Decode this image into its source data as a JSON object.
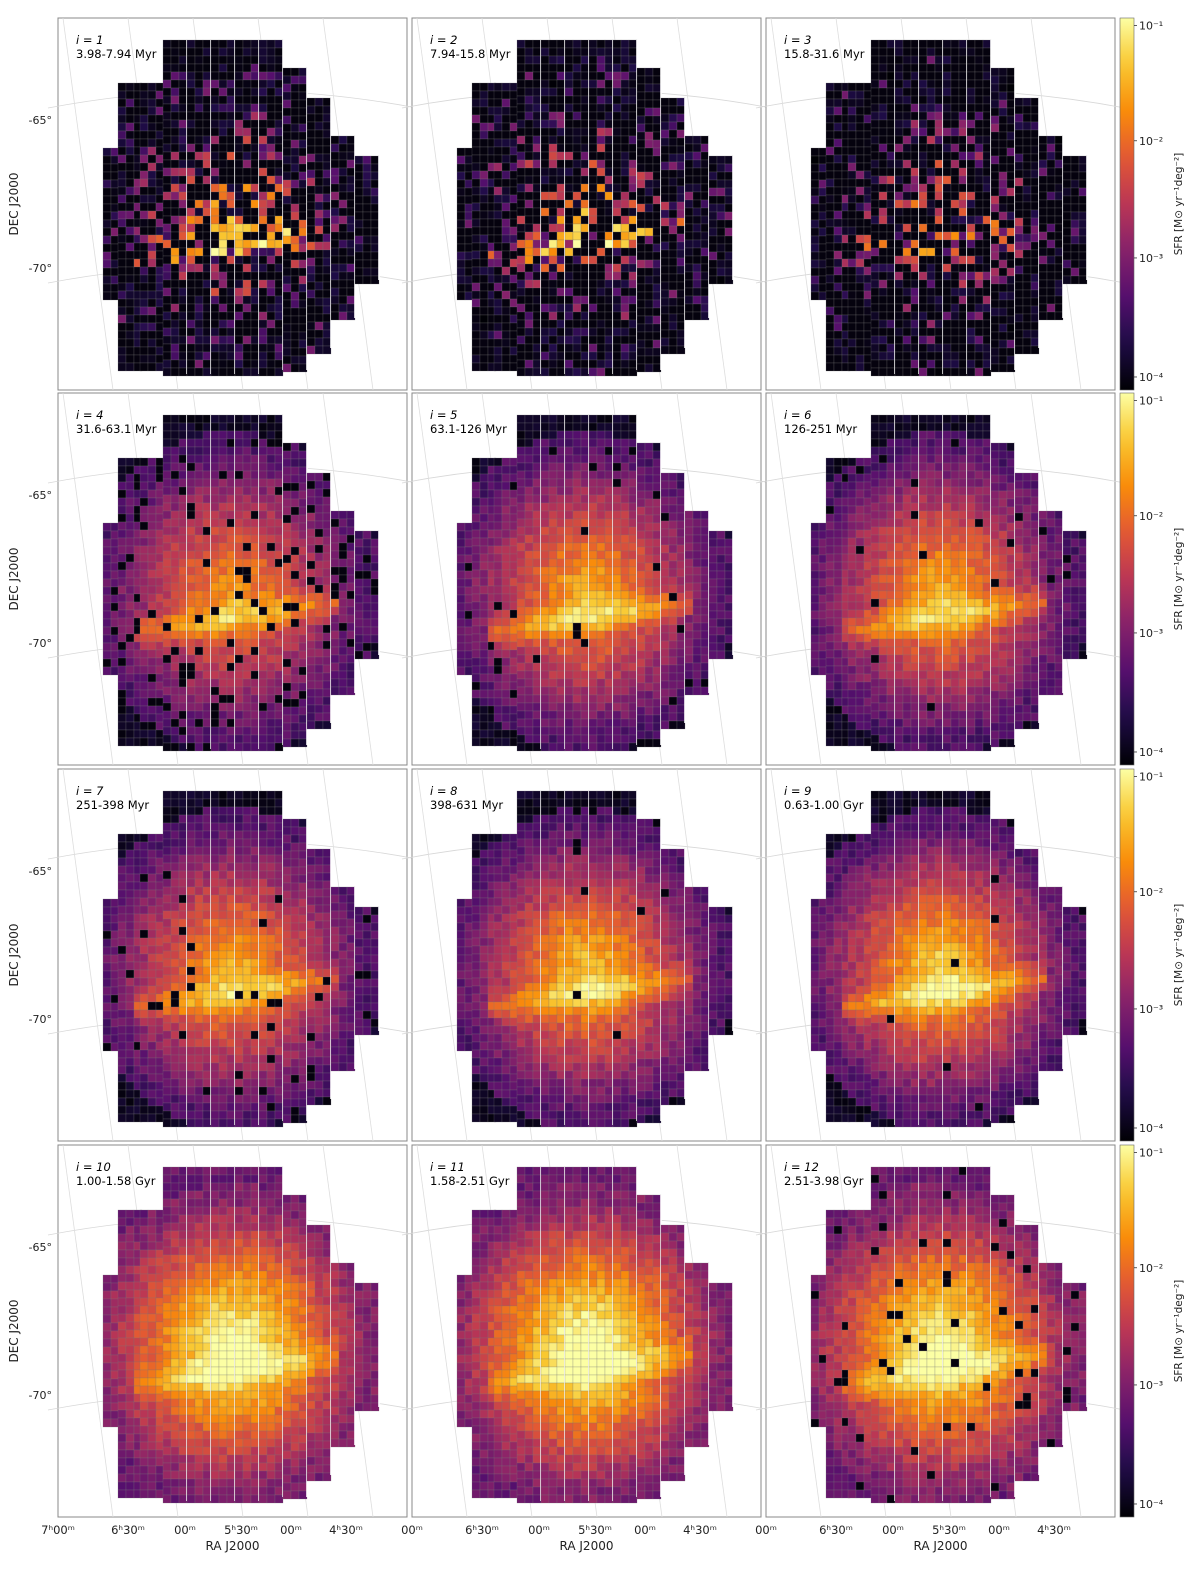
{
  "figure": {
    "ylabel": "DEC J2000",
    "xlabel": "RA J2000",
    "dec_ticks": [
      "-65°",
      "-70°"
    ],
    "ra_ticks_first": [
      "7ʰ00ᵐ",
      "6ʰ30ᵐ",
      "00ᵐ",
      "5ʰ30ᵐ",
      "00ᵐ",
      "4ʰ30ᵐ"
    ],
    "ra_ticks_other": [
      "00ᵐ",
      "6ʰ30ᵐ",
      "00ᵐ",
      "5ʰ30ᵐ",
      "00ᵐ",
      "4ʰ30ᵐ"
    ],
    "colorbar": {
      "label": "SFR [M⊙ yr⁻¹deg⁻²]",
      "ticks": [
        "10⁻¹",
        "10⁻²",
        "10⁻³",
        "10⁻⁴"
      ],
      "colormap": "inferno",
      "range_log10": [
        -4,
        -1
      ]
    }
  },
  "chart_data": {
    "type": "heatmap",
    "description_colors": {
      "background": "#ffffff",
      "frame": "#888888"
    },
    "panels": [
      {
        "index": "i = 1",
        "age": "3.98-7.94 Myr",
        "level": 0.38,
        "pattern": "clumpy",
        "bar_boost": 0.35,
        "dark_frac": 0.45
      },
      {
        "index": "i = 2",
        "age": "7.94-15.8 Myr",
        "level": 0.36,
        "pattern": "clumpy",
        "bar_boost": 0.35,
        "dark_frac": 0.45
      },
      {
        "index": "i = 3",
        "age": "15.8-31.6 Myr",
        "level": 0.3,
        "pattern": "clumpy",
        "bar_boost": 0.25,
        "dark_frac": 0.55
      },
      {
        "index": "i = 4",
        "age": "31.6-63.1 Myr",
        "level": 0.55,
        "pattern": "smooth",
        "bar_boost": 0.25,
        "dark_frac": 0.1
      },
      {
        "index": "i = 5",
        "age": "63.1-126 Myr",
        "level": 0.62,
        "pattern": "smooth",
        "bar_boost": 0.25,
        "dark_frac": 0.03
      },
      {
        "index": "i = 6",
        "age": "126-251 Myr",
        "level": 0.62,
        "pattern": "smooth",
        "bar_boost": 0.22,
        "dark_frac": 0.02
      },
      {
        "index": "i = 7",
        "age": "251-398 Myr",
        "level": 0.62,
        "pattern": "smooth",
        "bar_boost": 0.22,
        "dark_frac": 0.03
      },
      {
        "index": "i = 8",
        "age": "398-631 Myr",
        "level": 0.66,
        "pattern": "smooth",
        "bar_boost": 0.22,
        "dark_frac": 0.01
      },
      {
        "index": "i = 9",
        "age": "0.63-1.00 Gyr",
        "level": 0.7,
        "pattern": "smooth",
        "bar_boost": 0.25,
        "dark_frac": 0.01
      },
      {
        "index": "i = 10",
        "age": "1.00-1.58 Gyr",
        "level": 0.72,
        "pattern": "broad",
        "bar_boost": 0.18,
        "dark_frac": 0.0
      },
      {
        "index": "i = 11",
        "age": "1.58-2.51 Gyr",
        "level": 0.74,
        "pattern": "broad",
        "bar_boost": 0.18,
        "dark_frac": 0.0
      },
      {
        "index": "i = 12",
        "age": "2.51-3.98 Gyr",
        "level": 0.7,
        "pattern": "broad",
        "bar_boost": 0.18,
        "dark_frac": 0.04
      }
    ]
  }
}
